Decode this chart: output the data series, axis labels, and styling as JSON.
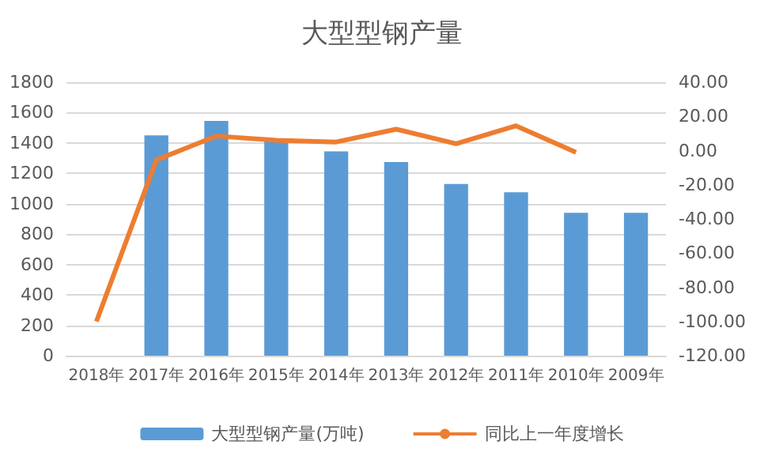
{
  "chart_data": {
    "type": "bar",
    "title": "大型型钢产量",
    "categories": [
      "2018年",
      "2017年",
      "2016年",
      "2015年",
      "2014年",
      "2013年",
      "2012年",
      "2011年",
      "2010年",
      "2009年"
    ],
    "series": [
      {
        "name": "大型型钢产量(万吨)",
        "color": "#5b9bd5",
        "values": [
          null,
          1450,
          1545,
          1430,
          1345,
          1275,
          1130,
          1075,
          940,
          940
        ]
      },
      {
        "name": "同比上一年度增长",
        "type": "line",
        "axis": "y2",
        "color": "#ed7d31",
        "values": [
          -100,
          -5.5,
          8.5,
          6,
          5,
          12.5,
          4,
          14.5,
          -1,
          null
        ]
      }
    ],
    "ylim": [
      0,
      1800
    ],
    "yticks": [
      0,
      200,
      400,
      600,
      800,
      1000,
      1200,
      1400,
      1600,
      1800
    ],
    "y2lim": [
      -120,
      40
    ],
    "y2ticks": [
      {
        "value": -120,
        "label": "-120.00"
      },
      {
        "value": -100,
        "label": "-100.00"
      },
      {
        "value": -80,
        "label": "-80.00"
      },
      {
        "value": -60,
        "label": "-60.00"
      },
      {
        "value": -40,
        "label": "-40.00"
      },
      {
        "value": -20,
        "label": "-20.00"
      },
      {
        "value": 0,
        "label": "0.00"
      },
      {
        "value": 20,
        "label": "20.00"
      },
      {
        "value": 40,
        "label": "40.00"
      }
    ],
    "grid": "y",
    "legend": "bottom",
    "marker": "none"
  }
}
